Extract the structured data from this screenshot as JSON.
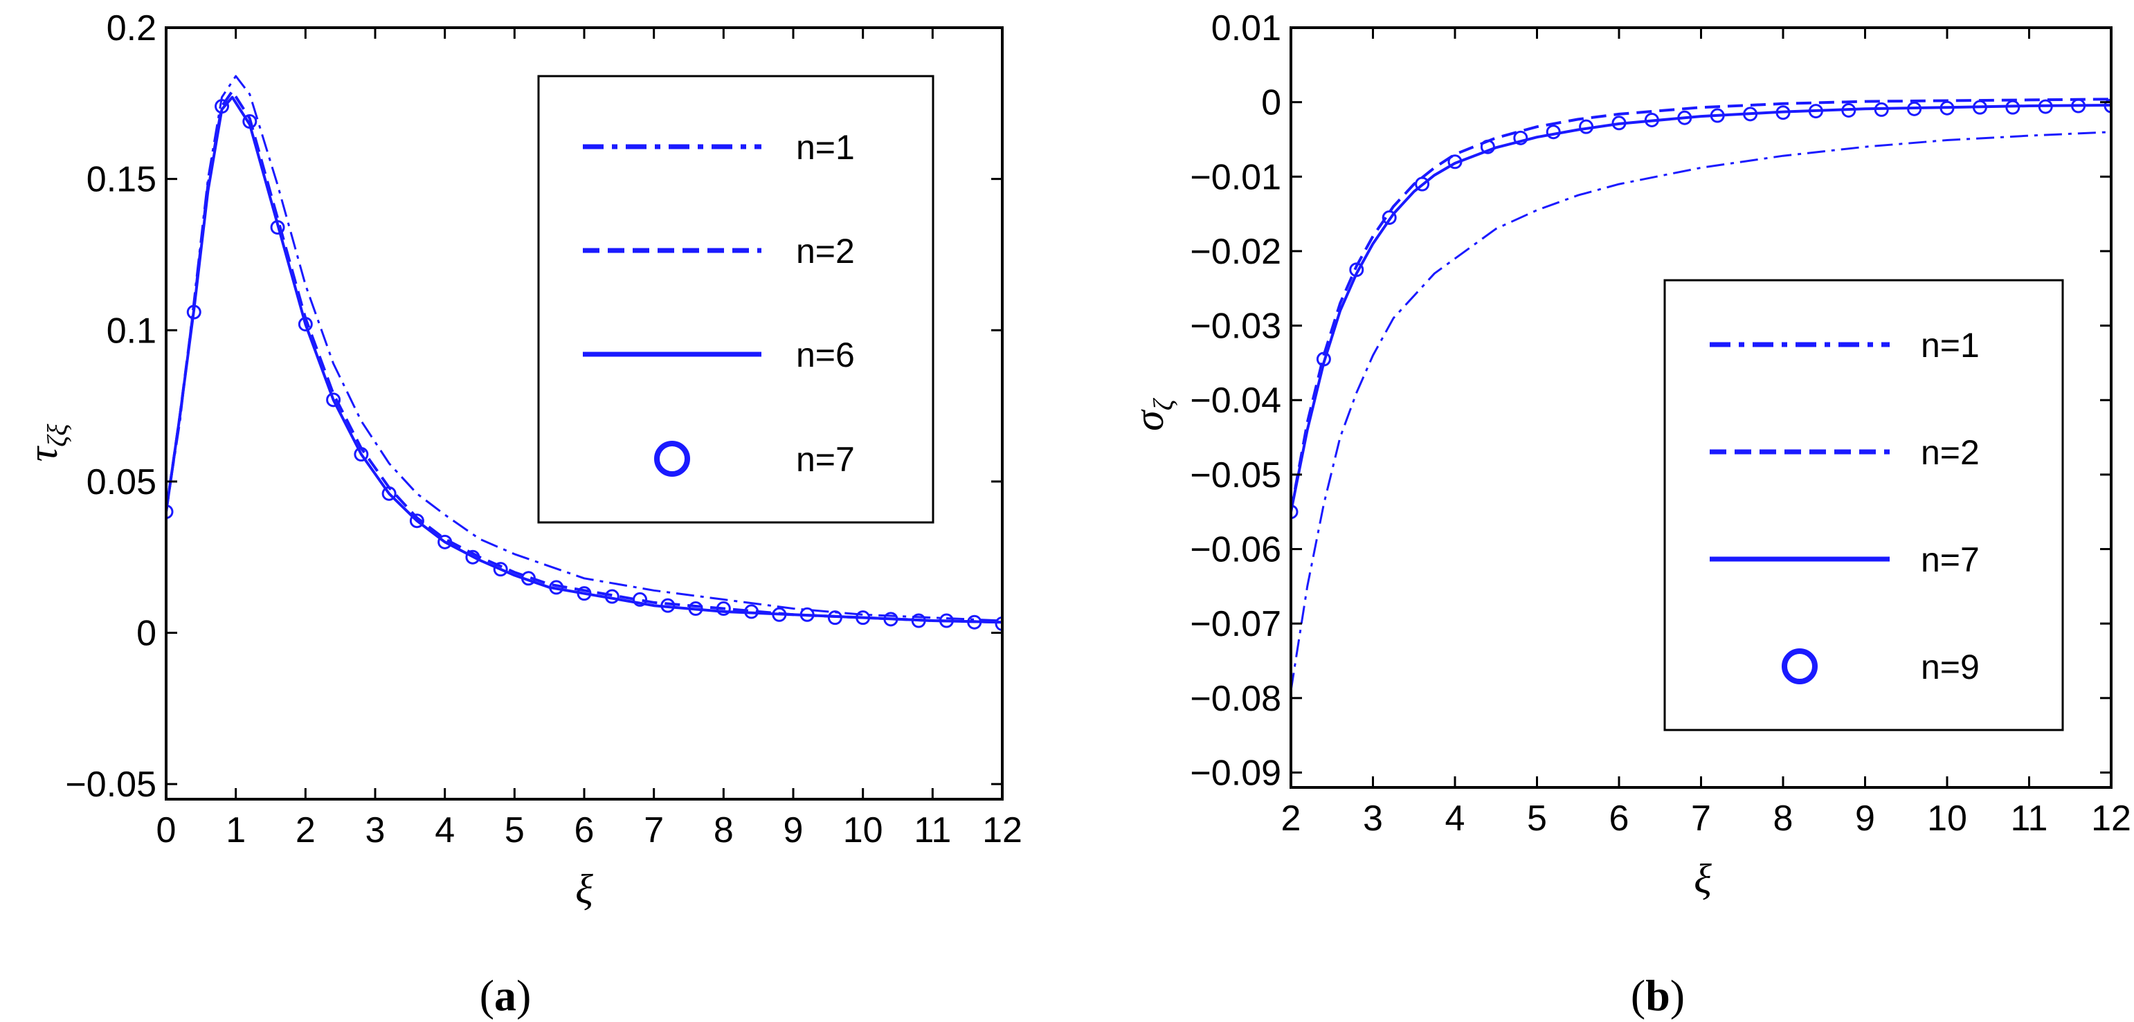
{
  "chart_data": [
    {
      "type": "line",
      "panel_label": "(a)",
      "panel_letter": "a",
      "xlabel": "ξ",
      "ylabel_main": "τ",
      "ylabel_sub": "ζξ",
      "xlim": [
        0,
        12
      ],
      "ylim": [
        -0.055,
        0.2
      ],
      "xticks": [
        0,
        1,
        2,
        3,
        4,
        5,
        6,
        7,
        8,
        9,
        10,
        11,
        12
      ],
      "yticks": [
        -0.05,
        0,
        0.05,
        0.1,
        0.15,
        0.2
      ],
      "ytick_labels": [
        "−0.05",
        "0",
        "0.05",
        "0.1",
        "0.15",
        "0.2"
      ],
      "grid": false,
      "legend_position": "top-right",
      "color": "#1a1aff",
      "series": [
        {
          "name": "n=1",
          "style": "dash-dot",
          "x": [
            0,
            0.2,
            0.4,
            0.6,
            0.8,
            1.0,
            1.2,
            1.6,
            2.0,
            2.4,
            2.8,
            3.2,
            3.6,
            4.0,
            4.5,
            5.0,
            5.5,
            6.0,
            6.5,
            7.0,
            8.0,
            9.0,
            10.0,
            11.0,
            12.0
          ],
          "y": [
            0.04,
            0.07,
            0.11,
            0.15,
            0.177,
            0.184,
            0.178,
            0.148,
            0.115,
            0.089,
            0.07,
            0.056,
            0.046,
            0.039,
            0.031,
            0.026,
            0.022,
            0.018,
            0.016,
            0.014,
            0.011,
            0.008,
            0.006,
            0.005,
            0.004
          ]
        },
        {
          "name": "n=2",
          "style": "dashed",
          "x": [
            0,
            0.2,
            0.4,
            0.6,
            0.8,
            0.95,
            1.2,
            1.6,
            2.0,
            2.4,
            2.8,
            3.2,
            3.6,
            4.0,
            4.5,
            5.0,
            5.5,
            6.0,
            6.5,
            7.0,
            8.0,
            9.0,
            10.0,
            11.0,
            12.0
          ],
          "y": [
            0.04,
            0.072,
            0.108,
            0.148,
            0.174,
            0.179,
            0.17,
            0.137,
            0.104,
            0.079,
            0.061,
            0.048,
            0.038,
            0.031,
            0.025,
            0.02,
            0.016,
            0.014,
            0.012,
            0.01,
            0.008,
            0.006,
            0.005,
            0.004,
            0.0035
          ]
        },
        {
          "name": "n=6",
          "style": "solid",
          "x": [
            0,
            0.2,
            0.4,
            0.6,
            0.8,
            0.95,
            1.2,
            1.6,
            2.0,
            2.4,
            2.8,
            3.2,
            3.6,
            4.0,
            4.5,
            5.0,
            5.5,
            6.0,
            6.5,
            7.0,
            8.0,
            9.0,
            10.0,
            11.0,
            12.0
          ],
          "y": [
            0.04,
            0.072,
            0.107,
            0.146,
            0.173,
            0.177,
            0.168,
            0.135,
            0.102,
            0.077,
            0.059,
            0.046,
            0.037,
            0.03,
            0.024,
            0.019,
            0.015,
            0.013,
            0.011,
            0.009,
            0.007,
            0.006,
            0.005,
            0.004,
            0.0035
          ]
        },
        {
          "name": "n=7",
          "style": "circles",
          "x": [
            0,
            0.4,
            0.8,
            1.2,
            1.6,
            2.0,
            2.4,
            2.8,
            3.2,
            3.6,
            4.0,
            4.4,
            4.8,
            5.2,
            5.6,
            6.0,
            6.4,
            6.8,
            7.2,
            7.6,
            8.0,
            8.4,
            8.8,
            9.2,
            9.6,
            10.0,
            10.4,
            10.8,
            11.2,
            11.6,
            12.0
          ],
          "y": [
            0.04,
            0.106,
            0.174,
            0.169,
            0.134,
            0.102,
            0.077,
            0.059,
            0.046,
            0.037,
            0.03,
            0.025,
            0.021,
            0.018,
            0.015,
            0.013,
            0.012,
            0.011,
            0.009,
            0.008,
            0.008,
            0.007,
            0.006,
            0.006,
            0.005,
            0.005,
            0.0045,
            0.004,
            0.004,
            0.0035,
            0.003
          ]
        }
      ]
    },
    {
      "type": "line",
      "panel_label": "(b)",
      "panel_letter": "b",
      "xlabel": "ξ",
      "ylabel_main": "σ",
      "ylabel_sub": "ζ",
      "xlim": [
        2,
        12
      ],
      "ylim": [
        -0.092,
        0.01
      ],
      "xticks": [
        2,
        3,
        4,
        5,
        6,
        7,
        8,
        9,
        10,
        11,
        12
      ],
      "yticks": [
        -0.09,
        -0.08,
        -0.07,
        -0.06,
        -0.05,
        -0.04,
        -0.03,
        -0.02,
        -0.01,
        0,
        0.01
      ],
      "ytick_labels": [
        "−0.09",
        "−0.08",
        "−0.07",
        "−0.06",
        "−0.05",
        "−0.04",
        "−0.03",
        "−0.02",
        "−0.01",
        "0",
        "0.01"
      ],
      "grid": false,
      "legend_position": "center-right",
      "color": "#1a1aff",
      "series": [
        {
          "name": "n=1",
          "style": "dash-dot",
          "x": [
            2,
            2.2,
            2.4,
            2.6,
            2.8,
            3.0,
            3.25,
            3.5,
            3.75,
            4.0,
            4.5,
            5.0,
            5.5,
            6.0,
            7.0,
            8.0,
            9.0,
            10.0,
            11.0,
            12.0
          ],
          "y": [
            -0.079,
            -0.065,
            -0.054,
            -0.045,
            -0.039,
            -0.034,
            -0.029,
            -0.026,
            -0.023,
            -0.021,
            -0.017,
            -0.0145,
            -0.0125,
            -0.011,
            -0.0088,
            -0.0072,
            -0.006,
            -0.0051,
            -0.0045,
            -0.004
          ]
        },
        {
          "name": "n=2",
          "style": "dashed",
          "x": [
            2,
            2.2,
            2.4,
            2.6,
            2.8,
            3.0,
            3.25,
            3.5,
            3.75,
            4.0,
            4.5,
            5.0,
            5.5,
            6.0,
            7.0,
            8.0,
            9.0,
            10.0,
            11.0,
            12.0
          ],
          "y": [
            -0.055,
            -0.043,
            -0.034,
            -0.027,
            -0.022,
            -0.018,
            -0.014,
            -0.011,
            -0.0088,
            -0.007,
            -0.0048,
            -0.0033,
            -0.0023,
            -0.0016,
            -0.0007,
            -0.0002,
            0.0001,
            0.0002,
            0.0003,
            0.0004
          ]
        },
        {
          "name": "n=7",
          "style": "solid",
          "x": [
            2,
            2.2,
            2.4,
            2.6,
            2.8,
            3.0,
            3.25,
            3.5,
            3.75,
            4.0,
            4.5,
            5.0,
            5.5,
            6.0,
            7.0,
            8.0,
            9.0,
            10.0,
            11.0,
            12.0
          ],
          "y": [
            -0.055,
            -0.044,
            -0.035,
            -0.028,
            -0.023,
            -0.019,
            -0.015,
            -0.012,
            -0.0098,
            -0.0082,
            -0.0061,
            -0.0047,
            -0.0037,
            -0.0029,
            -0.0019,
            -0.0013,
            -0.0009,
            -0.0007,
            -0.0005,
            -0.0004
          ]
        },
        {
          "name": "n=9",
          "style": "circles",
          "x": [
            2.0,
            2.4,
            2.8,
            3.2,
            3.6,
            4.0,
            4.4,
            4.8,
            5.2,
            5.6,
            6.0,
            6.4,
            6.8,
            7.2,
            7.6,
            8.0,
            8.4,
            8.8,
            9.2,
            9.6,
            10.0,
            10.4,
            10.8,
            11.2,
            11.6,
            12.0
          ],
          "y": [
            -0.055,
            -0.0345,
            -0.0225,
            -0.0155,
            -0.011,
            -0.008,
            -0.006,
            -0.0048,
            -0.004,
            -0.0033,
            -0.0028,
            -0.0024,
            -0.0021,
            -0.0018,
            -0.0016,
            -0.0014,
            -0.0012,
            -0.0011,
            -0.001,
            -0.0009,
            -0.0008,
            -0.0007,
            -0.0007,
            -0.0006,
            -0.0005,
            -0.0005
          ]
        }
      ]
    }
  ]
}
